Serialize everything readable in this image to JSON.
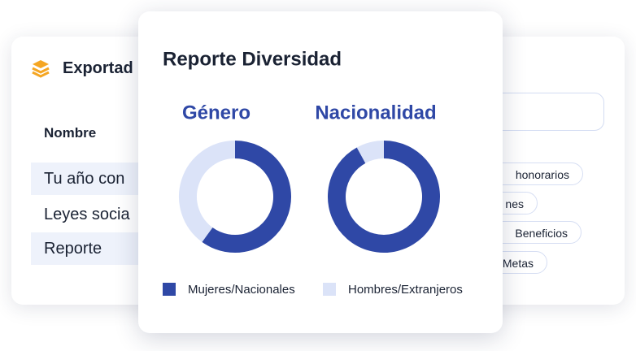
{
  "back_card": {
    "title": "Exportad",
    "column_header": "Nombre",
    "rows": [
      "Tu año con",
      "Leyes socia",
      "Reporte"
    ],
    "tags": [
      "honorarios",
      "nes",
      "Beneficios",
      "Metas"
    ]
  },
  "report": {
    "title": "Reporte Diversidad",
    "legend": [
      {
        "name": "Mujeres/Nacionales",
        "color": "#2f48a6"
      },
      {
        "name": "Hombres/Extranjeros",
        "color": "#dbe3f8"
      }
    ]
  },
  "chart_data": [
    {
      "type": "pie",
      "title": "Género",
      "values": [
        60,
        40
      ]
    },
    {
      "type": "pie",
      "title": "Nacionalidad",
      "values": [
        92,
        8
      ]
    }
  ]
}
